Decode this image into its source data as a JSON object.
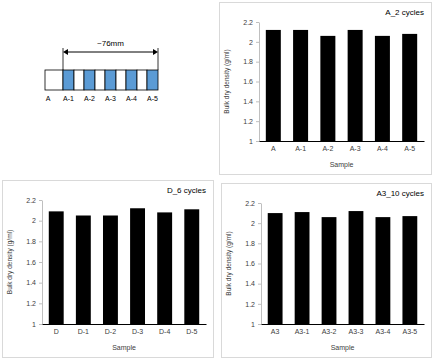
{
  "diagram": {
    "dimension": "~76mm",
    "labels": [
      "A",
      "A-1",
      "A-2",
      "A-3",
      "A-4",
      "A-5"
    ]
  },
  "chart_data": [
    {
      "type": "bar",
      "title": "A_2 cycles",
      "x_label": "Sample",
      "y_label": "Bulk dry density (g/ml)",
      "categories": [
        "A",
        "A-1",
        "A-2",
        "A-3",
        "A-4",
        "A-5"
      ],
      "values": [
        2.12,
        2.12,
        2.06,
        2.12,
        2.06,
        2.08
      ],
      "color": "#000000",
      "ylim": [
        1,
        2.2
      ],
      "yticks": [
        1,
        1.2,
        1.4,
        1.6,
        1.8,
        2,
        2.2
      ],
      "grid": false
    },
    {
      "type": "bar",
      "title": "D_6 cycles",
      "x_label": "Sample",
      "y_label": "Bulk dry density (g/ml)",
      "categories": [
        "D",
        "D-1",
        "D-2",
        "D-3",
        "D-4",
        "D-5"
      ],
      "values": [
        2.09,
        2.05,
        2.05,
        2.12,
        2.08,
        2.11
      ],
      "color": "#000000",
      "ylim": [
        1,
        2.2
      ],
      "yticks": [
        1,
        1.2,
        1.4,
        1.6,
        1.8,
        2,
        2.2
      ],
      "grid": false
    },
    {
      "type": "bar",
      "title": "A3_10 cycles",
      "x_label": "Sample",
      "y_label": "Bulk dry density (g/ml)",
      "categories": [
        "A3",
        "A3-1",
        "A3-2",
        "A3-3",
        "A3-4",
        "A3-5"
      ],
      "values": [
        2.1,
        2.11,
        2.06,
        2.12,
        2.06,
        2.07
      ],
      "color": "#000000",
      "ylim": [
        1,
        2.2
      ],
      "yticks": [
        1,
        1.2,
        1.4,
        1.6,
        1.8,
        2,
        2.2
      ],
      "grid": false
    }
  ]
}
